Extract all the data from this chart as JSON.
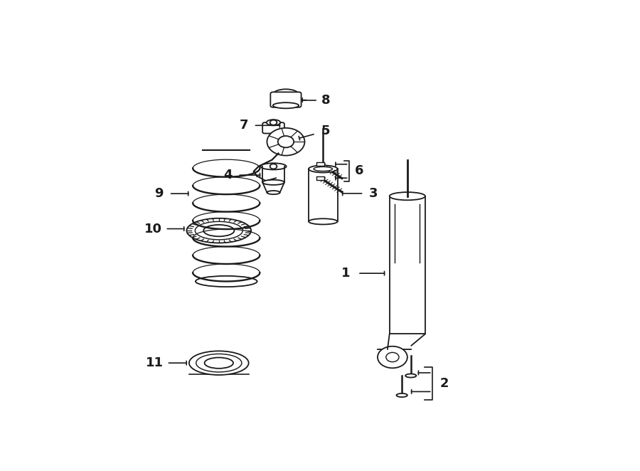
{
  "background_color": "#ffffff",
  "line_color": "#1a1a1a",
  "text_color": "#1a1a1a",
  "fig_width": 9.0,
  "fig_height": 6.62,
  "dpi": 100,
  "lw": 1.3,
  "positions": {
    "8": {
      "bx": 0.415,
      "by": 0.87
    },
    "7": {
      "bx": 0.39,
      "by": 0.8
    },
    "5": {
      "bx": 0.415,
      "by": 0.745
    },
    "4": {
      "bx": 0.39,
      "by": 0.645
    },
    "6": {
      "bx": 0.49,
      "by": 0.665
    },
    "3": {
      "bx": 0.49,
      "by": 0.54
    },
    "10": {
      "bx": 0.28,
      "by": 0.52
    },
    "9": {
      "bx": 0.295,
      "by": 0.38
    },
    "11": {
      "bx": 0.28,
      "by": 0.155
    },
    "1": {
      "bx": 0.66,
      "by": 0.235
    },
    "2": {
      "bx": 0.655,
      "by": 0.068
    }
  }
}
